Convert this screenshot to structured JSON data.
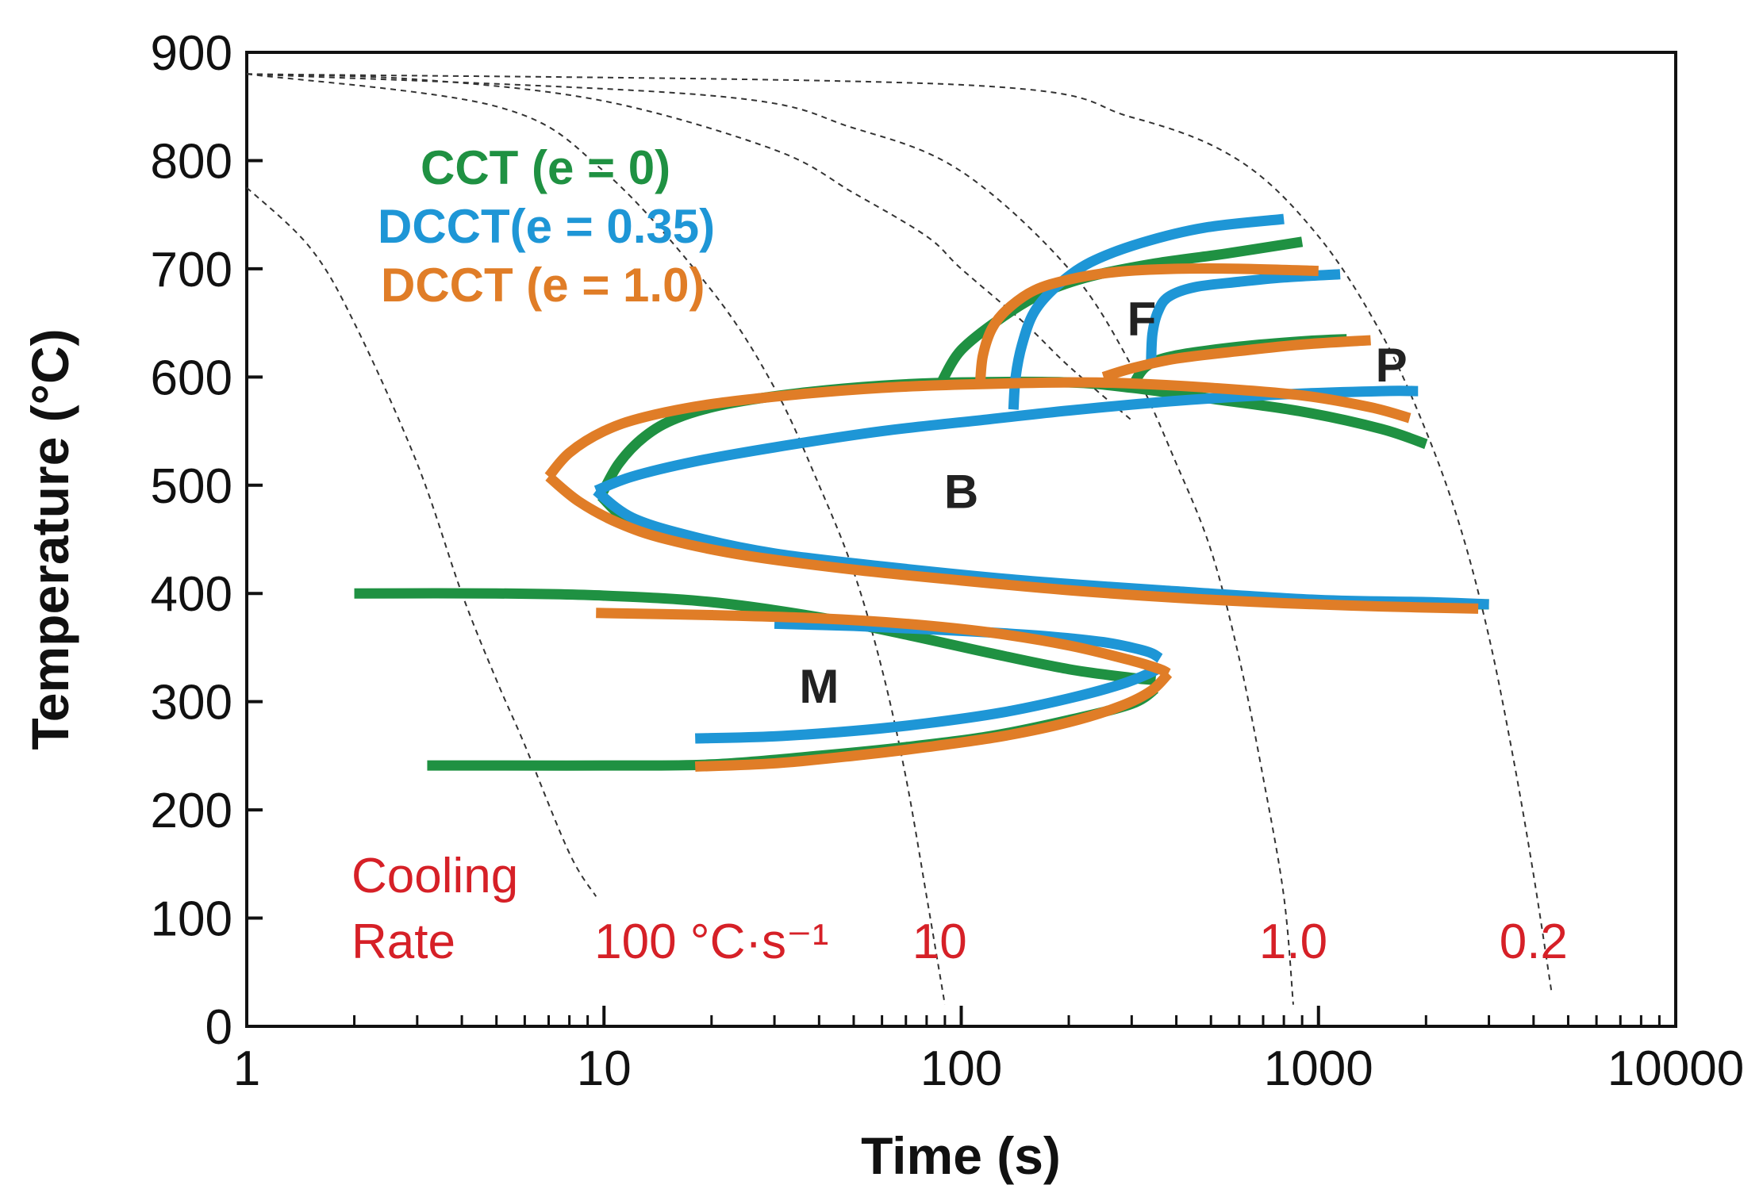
{
  "chart_data": {
    "type": "line",
    "title": "",
    "xlabel": "Time (s)",
    "ylabel": "Temperature (°C)",
    "xscale": "log",
    "xlim": [
      1,
      10000
    ],
    "ylim": [
      0,
      900
    ],
    "x_ticks": [
      1,
      10,
      100,
      1000,
      10000
    ],
    "x_tick_labels": [
      "1",
      "10",
      "100",
      "1000",
      "10000"
    ],
    "y_ticks": [
      0,
      100,
      200,
      300,
      400,
      500,
      600,
      700,
      800,
      900
    ],
    "y_tick_labels": [
      "0",
      "100",
      "200",
      "300",
      "400",
      "500",
      "600",
      "700",
      "800",
      "900"
    ],
    "grid": false,
    "colors": {
      "cct": "#1f9142",
      "dcct035": "#1e96d6",
      "dcct10": "#e07d27",
      "rate": "#d62027"
    },
    "legend": [
      {
        "label": "CCT (e = 0)",
        "color": "#1f9142"
      },
      {
        "label": "DCCT(e = 0.35)",
        "color": "#1e96d6"
      },
      {
        "label": "DCCT (e = 1.0)",
        "color": "#e07d27"
      }
    ],
    "regions": [
      {
        "label": "F",
        "x": 320,
        "y": 655
      },
      {
        "label": "P",
        "x": 1600,
        "y": 612
      },
      {
        "label": "B",
        "x": 100,
        "y": 495
      },
      {
        "label": "M",
        "x": 40,
        "y": 315
      }
    ],
    "cooling_rate_text": {
      "line1": "Cooling",
      "line2": "Rate",
      "unit_value": "100 °C·s⁻¹"
    },
    "cooling_curves": [
      {
        "rate": "100 °C·s⁻¹",
        "label": "100 °C·s⁻¹",
        "x": [
          1,
          1.5,
          2,
          3,
          4,
          5,
          6,
          8,
          9.5
        ],
        "y": [
          775,
          720,
          650,
          520,
          400,
          320,
          260,
          160,
          120
        ]
      },
      {
        "rate": "10",
        "label": "10",
        "x": [
          1,
          5,
          10,
          20,
          30,
          40,
          50,
          60,
          70,
          80,
          90
        ],
        "y": [
          880,
          850,
          790,
          680,
          590,
          500,
          420,
          330,
          230,
          120,
          20
        ]
      },
      {
        "rate": "1.0",
        "label": "1.0",
        "x": [
          1,
          20,
          50,
          100,
          200,
          300,
          400,
          500,
          600,
          700,
          800,
          850
        ],
        "y": [
          880,
          860,
          830,
          790,
          700,
          610,
          520,
          440,
          340,
          230,
          120,
          20
        ]
      },
      {
        "rate": "0.2",
        "label": "0.2",
        "x": [
          1,
          100,
          300,
          600,
          1000,
          1500,
          2000,
          2500,
          3000,
          3500,
          4000,
          4500
        ],
        "y": [
          880,
          870,
          840,
          800,
          730,
          640,
          550,
          460,
          360,
          250,
          140,
          30
        ]
      },
      {
        "rate": "",
        "label": "",
        "x": [
          1,
          3,
          10,
          30,
          50,
          80,
          100,
          150,
          200,
          300
        ],
        "y": [
          880,
          875,
          855,
          810,
          770,
          730,
          700,
          650,
          610,
          560
        ]
      }
    ],
    "series": [
      {
        "name": "CCT (e = 0)",
        "segments": [
          {
            "x": [
              88,
              100,
              130,
              170,
              230,
              350,
              550,
              900
            ],
            "y": [
              595,
              625,
              655,
              678,
              693,
              705,
              714,
              725
            ]
          },
          {
            "x": [
              300,
              330,
              400,
              600,
              900,
              1200
            ],
            "y": [
              590,
              610,
              620,
              628,
              633,
              635
            ]
          },
          {
            "x": [
              9.8,
              11,
              13,
              16,
              22,
              35,
              60,
              100,
              200,
              300,
              500,
              900,
              1500,
              2000
            ],
            "y": [
              490,
              520,
              545,
              562,
              575,
              585,
              592,
              595,
              595,
              590,
              580,
              568,
              552,
              538
            ]
          },
          {
            "x": [
              9.8,
              12,
              18,
              30,
              60,
              150,
              400,
              1000,
              2000,
              3000
            ],
            "y": [
              490,
              465,
              447,
              432,
              420,
              408,
              398,
              392,
              390,
              390
            ]
          },
          {
            "x": [
              2,
              5,
              10,
              20,
              40,
              70,
              120,
              200,
              300,
              350
            ],
            "y": [
              400,
              400,
              398,
              392,
              378,
              362,
              345,
              330,
              322,
              320
            ]
          },
          {
            "x": [
              350,
              300,
              200,
              120,
              70,
              40,
              20,
              10,
              5,
              3.2
            ],
            "y": [
              312,
              298,
              283,
              268,
              258,
              250,
              242,
              241,
              241,
              241
            ]
          }
        ]
      },
      {
        "name": "DCCT(e = 0.35)",
        "segments": [
          {
            "x": [
              140,
              142,
              148,
              160,
              185,
              230,
              320,
              480,
              800
            ],
            "y": [
              570,
              600,
              630,
              660,
              684,
              706,
              724,
              738,
              746
            ]
          },
          {
            "x": [
              340,
              343,
              355,
              380,
              450,
              600,
              800,
              1150
            ],
            "y": [
              615,
              640,
              660,
              674,
              683,
              688,
              692,
              695
            ]
          },
          {
            "x": [
              9.5,
              12,
              18,
              30,
              60,
              120,
              200,
              400,
              800,
              1500,
              1900
            ],
            "y": [
              495,
              508,
              522,
              535,
              550,
              561,
              569,
              578,
              584,
              587,
              587
            ]
          },
          {
            "x": [
              9.5,
              12,
              18,
              30,
              60,
              150,
              400,
              1000,
              2000,
              3000
            ],
            "y": [
              495,
              470,
              452,
              437,
              425,
              412,
              402,
              394,
              392,
              390
            ]
          },
          {
            "x": [
              18,
              30,
              50,
              80,
              130,
              200,
              280,
              340,
              360
            ],
            "y": [
              266,
              268,
              273,
              280,
              290,
              303,
              316,
              327,
              332
            ]
          },
          {
            "x": [
              360,
              340,
              300,
              250,
              180,
              120,
              80,
              50,
              30
            ],
            "y": [
              340,
              345,
              350,
              355,
              360,
              364,
              367,
              370,
              372
            ]
          }
        ]
      },
      {
        "name": "DCCT (e = 1.0)",
        "segments": [
          {
            "x": [
              113,
              115,
              122,
              135,
              160,
              200,
              270,
              400,
              600,
              1000
            ],
            "y": [
              595,
              620,
              645,
              663,
              680,
              690,
              697,
              700,
              700,
              698
            ]
          },
          {
            "x": [
              250,
              300,
              400,
              600,
              900,
              1400
            ],
            "y": [
              600,
              608,
              617,
              624,
              630,
              634
            ]
          },
          {
            "x": [
              7,
              8,
              10,
              13,
              20,
              35,
              60,
              100,
              200,
              300,
              500,
              900,
              1400,
              1800
            ],
            "y": [
              508,
              530,
              550,
              563,
              575,
              584,
              590,
              593,
              595,
              594,
              590,
              583,
              572,
              562
            ]
          },
          {
            "x": [
              7,
              8.5,
              11,
              15,
              25,
              50,
              100,
              200,
              400,
              800,
              1500,
              2800
            ],
            "y": [
              508,
              485,
              465,
              450,
              435,
              422,
              412,
              403,
              396,
              391,
              388,
              386
            ]
          },
          {
            "x": [
              9.5,
              20,
              40,
              70,
              120,
              200,
              300,
              360,
              380
            ],
            "y": [
              382,
              380,
              377,
              372,
              364,
              352,
              338,
              330,
              326
            ]
          },
          {
            "x": [
              380,
              340,
              280,
              200,
              130,
              80,
              50,
              30,
              18
            ],
            "y": [
              326,
              310,
              296,
              281,
              268,
              258,
              250,
              243,
              240
            ]
          }
        ]
      }
    ]
  }
}
